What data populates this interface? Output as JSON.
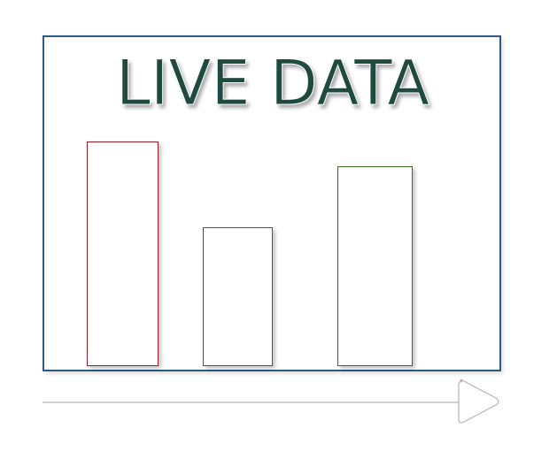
{
  "title": "LIVE DATA",
  "bars": [
    {
      "color": "#9b1c24",
      "level": 1.0
    },
    {
      "color": "#2e5b86",
      "level": 0.62
    },
    {
      "color": "#3d6b25",
      "level": 0.89
    }
  ],
  "frame_color": "#2e5b86",
  "title_color": "#1f4a3f",
  "timeline": {
    "icon": "play-arrow-icon",
    "line_color": "#b3b3b3"
  }
}
